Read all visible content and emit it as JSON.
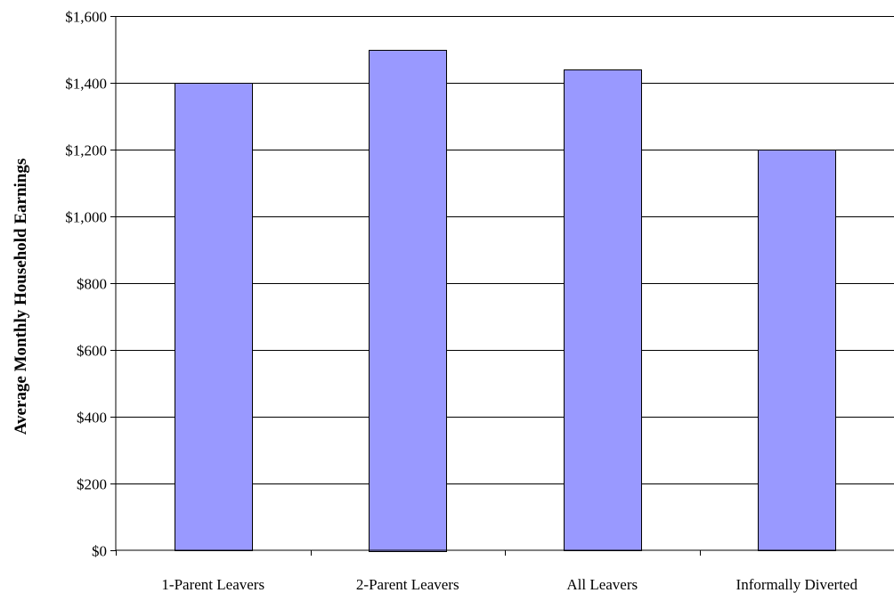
{
  "chart_data": {
    "type": "bar",
    "title": "",
    "xlabel": "",
    "ylabel": "Average Monthly Household Earnings",
    "categories": [
      "1-Parent Leavers",
      "2-Parent Leavers",
      "All Leavers",
      "Informally Diverted"
    ],
    "values": [
      1400,
      1500,
      1440,
      1200
    ],
    "ylim": [
      0,
      1600
    ],
    "yticks": [
      0,
      200,
      400,
      600,
      800,
      1000,
      1200,
      1400,
      1600
    ],
    "ytick_labels": [
      "$0",
      "$200",
      "$400",
      "$600",
      "$800",
      "$1,000",
      "$1,200",
      "$1,400",
      "$1,600"
    ],
    "grid": true,
    "legend": "none",
    "bar_color": "#9999ff",
    "bar_edge_color": "#000000"
  }
}
